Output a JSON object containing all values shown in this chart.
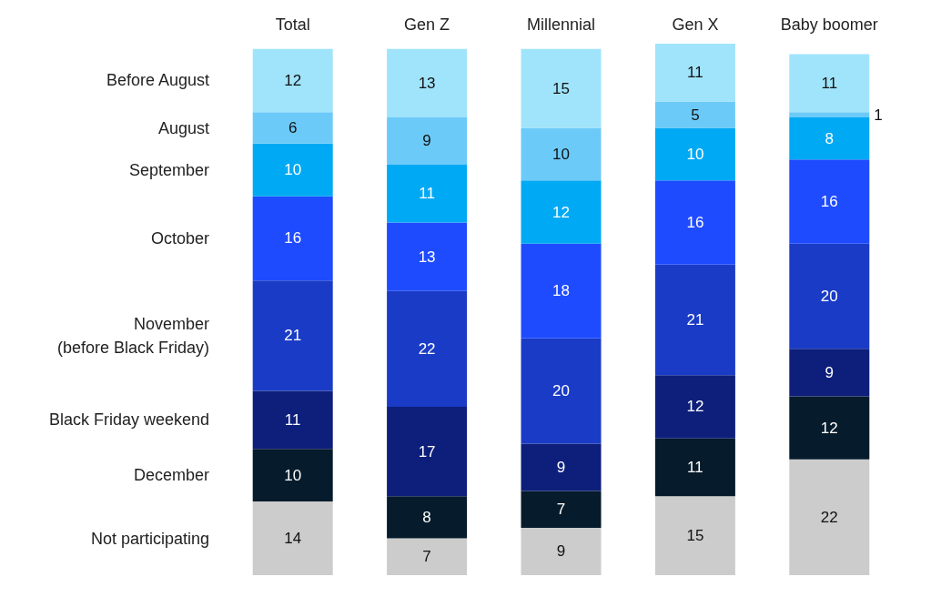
{
  "chart_data": {
    "type": "bar",
    "stacked": true,
    "data_labels": true,
    "tick_labels": "x",
    "categories": [
      "Total",
      "Gen Z",
      "Millennial",
      "Gen X",
      "Baby boomer"
    ],
    "series": [
      {
        "name": "Not participating",
        "color": "#cccccc",
        "values": [
          14,
          7,
          9,
          15,
          22
        ]
      },
      {
        "name": "December",
        "color": "#061b2b",
        "values": [
          10,
          8,
          7,
          11,
          12
        ]
      },
      {
        "name": "Black Friday weekend",
        "color": "#0d1f7a",
        "values": [
          11,
          17,
          9,
          12,
          9
        ]
      },
      {
        "name": "November\n(before Black Friday)",
        "color": "#1a3bc5",
        "values": [
          21,
          22,
          20,
          21,
          20
        ]
      },
      {
        "name": "October",
        "color": "#1f4bff",
        "values": [
          16,
          13,
          18,
          16,
          16
        ]
      },
      {
        "name": "September",
        "color": "#00a9f4",
        "values": [
          10,
          11,
          12,
          10,
          8
        ]
      },
      {
        "name": "August",
        "color": "#6ccaf8",
        "values": [
          6,
          9,
          10,
          5,
          1
        ]
      },
      {
        "name": "Before August",
        "color": "#a0e4fb",
        "values": [
          12,
          13,
          15,
          11,
          11
        ]
      }
    ]
  }
}
